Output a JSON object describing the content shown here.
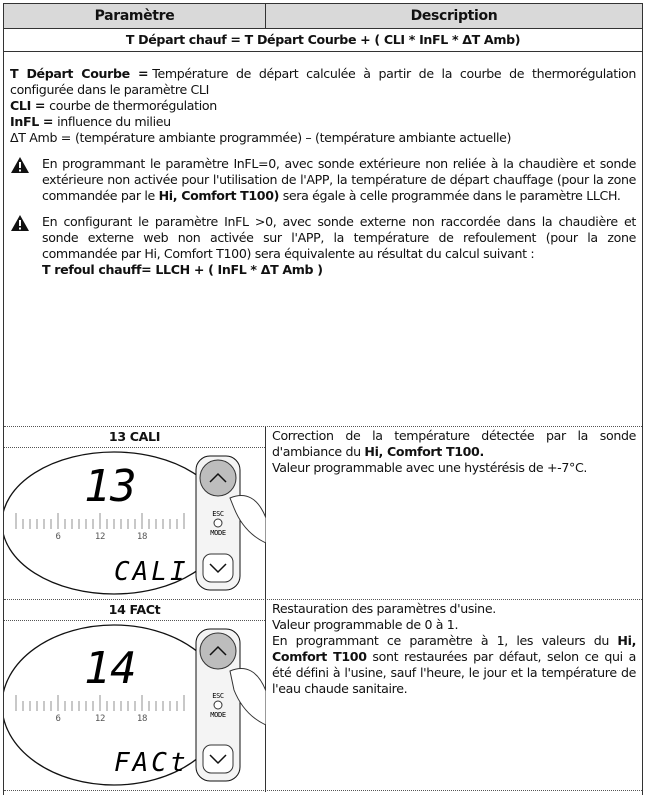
{
  "header": {
    "param": "Paramètre",
    "desc": "Description"
  },
  "formula": {
    "text": "T Départ chauf = T Départ Courbe + ( CLI * InFL * ΔT Amb)",
    "definitions": [
      {
        "term": "T Départ Courbe =",
        "text": "Température de départ calculée à partir de la courbe de thermorégulation configurée dans le paramètre CLI"
      },
      {
        "term": "CLI =",
        "text": "courbe de thermorégulation"
      },
      {
        "term": "InFL =",
        "text": "influence du milieu"
      },
      {
        "term": "ΔT Amb =",
        "text": "(température ambiante programmée) – (température ambiante actuelle)"
      }
    ],
    "warnings": [
      [
        [
          {
            "text": "En programmant le paramètre InFL=0, avec sonde extérieure non reliée à la chaudière et sonde extérieure non activée pour l'utilisation de l'APP, la température de départ chauffage (pour la zone commandée par le "
          },
          {
            "text": "Hi, Comfort T100)",
            "bold": true
          },
          {
            "text": " sera égale à celle programmée dans le paramètre LLCH."
          }
        ]
      ],
      [
        [
          {
            "text": "En configurant le paramètre InFL >0, avec sonde externe non raccordée dans la chaudière et sonde externe web non activée sur l'APP, la température de refoulement (pour la zone commandée par Hi, Comfort T100) sera équivalente au résultat du calcul suivant :"
          }
        ],
        [
          {
            "text": "T refoul chauff= LLCH + ( InFL * ΔT Amb )",
            "bold": true
          }
        ]
      ]
    ]
  },
  "rows": [
    {
      "name": "13 CALI",
      "display": {
        "number": "13",
        "label": "CALI",
        "scale": [
          "6",
          "12",
          "18"
        ],
        "buttons": [
          "ESC",
          "MODE"
        ]
      },
      "description": [
        [
          {
            "text": "Correction de la température détectée par la sonde d'ambiance du "
          },
          {
            "text": "Hi, Comfort T100.",
            "bold": true
          }
        ],
        [
          {
            "text": "Valeur programmable avec une hystérésis de +-7°C."
          }
        ]
      ]
    },
    {
      "name": "14 FACt",
      "display": {
        "number": "14",
        "label": "FACt",
        "scale": [
          "6",
          "12",
          "18"
        ],
        "buttons": [
          "ESC",
          "MODE"
        ]
      },
      "description": [
        [
          {
            "text": "Restauration des paramètres d'usine."
          }
        ],
        [
          {
            "text": "Valeur programmable de 0 à 1."
          }
        ],
        [
          {
            "text": "En programmant ce paramètre à 1, les valeurs du "
          },
          {
            "text": "Hi, Comfort T100",
            "bold": true
          },
          {
            "text": " sont restaurées par défaut, selon ce qui a été défini à l'usine, sauf l'heure, le jour et la température de l'eau chaude sanitaire."
          }
        ]
      ]
    }
  ]
}
